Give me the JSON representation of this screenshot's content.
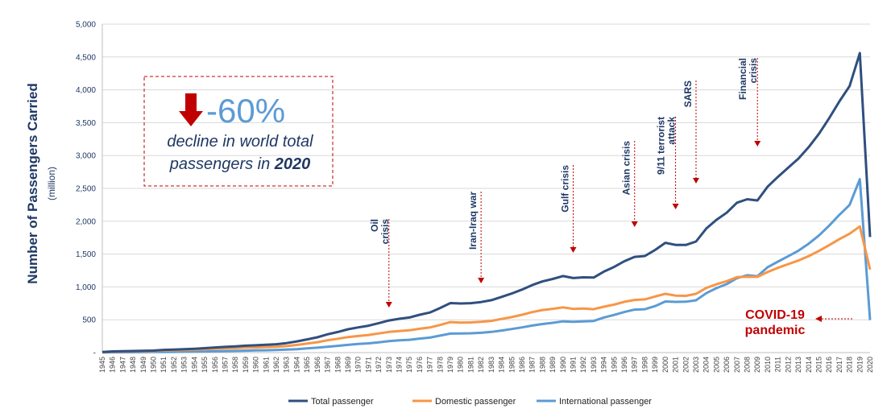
{
  "chart_data": {
    "type": "line",
    "ylabel": "Number of Passengers Carried",
    "ylabel_sub": "(million)",
    "ylim": [
      0,
      5000
    ],
    "yticks": [
      {
        "value": 0,
        "label": "-"
      },
      {
        "value": 500,
        "label": "500"
      },
      {
        "value": 1000,
        "label": "1,000"
      },
      {
        "value": 1500,
        "label": "1,500"
      },
      {
        "value": 2000,
        "label": "2,000"
      },
      {
        "value": 2500,
        "label": "2,500"
      },
      {
        "value": 3000,
        "label": "3,000"
      },
      {
        "value": 3500,
        "label": "3,500"
      },
      {
        "value": 4000,
        "label": "4,000"
      },
      {
        "value": 4500,
        "label": "4,500"
      },
      {
        "value": 5000,
        "label": "5,000"
      }
    ],
    "x": [
      1945,
      1946,
      1947,
      1948,
      1949,
      1950,
      1951,
      1952,
      1953,
      1954,
      1955,
      1956,
      1957,
      1958,
      1959,
      1960,
      1961,
      1962,
      1963,
      1964,
      1965,
      1966,
      1967,
      1968,
      1969,
      1970,
      1971,
      1972,
      1973,
      1974,
      1975,
      1976,
      1977,
      1978,
      1979,
      1980,
      1981,
      1982,
      1983,
      1984,
      1985,
      1986,
      1987,
      1988,
      1989,
      1990,
      1991,
      1992,
      1993,
      1994,
      1995,
      1996,
      1997,
      1998,
      1999,
      2000,
      2001,
      2002,
      2003,
      2004,
      2005,
      2006,
      2007,
      2008,
      2009,
      2010,
      2011,
      2012,
      2013,
      2014,
      2015,
      2016,
      2017,
      2018,
      2019,
      2020
    ],
    "series": [
      {
        "name": "Total passenger",
        "color": "#2f4f7f",
        "values": [
          9,
          18,
          21,
          24,
          27,
          31,
          42,
          46,
          52,
          59,
          68,
          78,
          87,
          95,
          106,
          112,
          120,
          127,
          144,
          170,
          201,
          233,
          278,
          314,
          355,
          383,
          409,
          449,
          489,
          515,
          534,
          576,
          610,
          679,
          754,
          748,
          753,
          770,
          798,
          848,
          899,
          960,
          1028,
          1083,
          1121,
          1165,
          1135,
          1146,
          1142,
          1233,
          1304,
          1391,
          1457,
          1471,
          1562,
          1672,
          1640,
          1639,
          1691,
          1888,
          2022,
          2130,
          2282,
          2334,
          2316,
          2527,
          2675,
          2814,
          2954,
          3127,
          3330,
          3568,
          3824,
          4057,
          4560,
          1760
        ]
      },
      {
        "name": "Domestic passenger",
        "color": "#f79646",
        "values": [
          7,
          14,
          16,
          18,
          20,
          23,
          32,
          35,
          39,
          44,
          51,
          58,
          64,
          69,
          76,
          79,
          84,
          88,
          99,
          117,
          137,
          158,
          188,
          211,
          237,
          252,
          268,
          292,
          315,
          329,
          339,
          363,
          382,
          420,
          465,
          457,
          459,
          468,
          483,
          512,
          540,
          576,
          616,
          648,
          667,
          689,
          666,
          671,
          660,
          699,
          730,
          773,
          802,
          810,
          854,
          894,
          868,
          864,
          894,
          984,
          1040,
          1087,
          1148,
          1156,
          1153,
          1227,
          1290,
          1347,
          1402,
          1469,
          1548,
          1635,
          1727,
          1810,
          1920,
          1265
        ]
      },
      {
        "name": "International passenger",
        "color": "#5b9bd5",
        "values": [
          2,
          4,
          5,
          6,
          7,
          8,
          10,
          11,
          13,
          15,
          17,
          20,
          23,
          26,
          30,
          33,
          36,
          39,
          45,
          53,
          64,
          75,
          90,
          103,
          118,
          131,
          141,
          157,
          174,
          186,
          195,
          213,
          228,
          259,
          289,
          291,
          294,
          302,
          315,
          336,
          359,
          384,
          412,
          435,
          454,
          476,
          469,
          475,
          482,
          534,
          574,
          618,
          655,
          661,
          708,
          778,
          772,
          775,
          797,
          904,
          982,
          1043,
          1134,
          1178,
          1163,
          1300,
          1385,
          1467,
          1552,
          1658,
          1782,
          1933,
          2097,
          2247,
          2640,
          495
        ]
      }
    ],
    "events": [
      {
        "label": "Oil",
        "label2": "crisis",
        "year": 1973
      },
      {
        "label": "Iran-Iraq war",
        "year": 1982
      },
      {
        "label": "Gulf crisis",
        "year": 1991
      },
      {
        "label": "Asian crisis",
        "year": 1997
      },
      {
        "label": "9/11 terrorist",
        "label2": "attack",
        "year": 2001
      },
      {
        "label": "SARS",
        "year": 2003
      },
      {
        "label": "Financial",
        "label2": "crisis",
        "year": 2009
      }
    ],
    "covid_label": {
      "line1": "COVID-19",
      "line2": "pandemic"
    },
    "callout": {
      "percent": "-60%",
      "line1": "decline in world total",
      "line2_prefix": "passengers in ",
      "line2_bold": "2020"
    }
  },
  "colors": {
    "axis": "#1f3864",
    "grid": "#d9d9d9",
    "red": "#c00000",
    "arrow": "#c00000"
  }
}
